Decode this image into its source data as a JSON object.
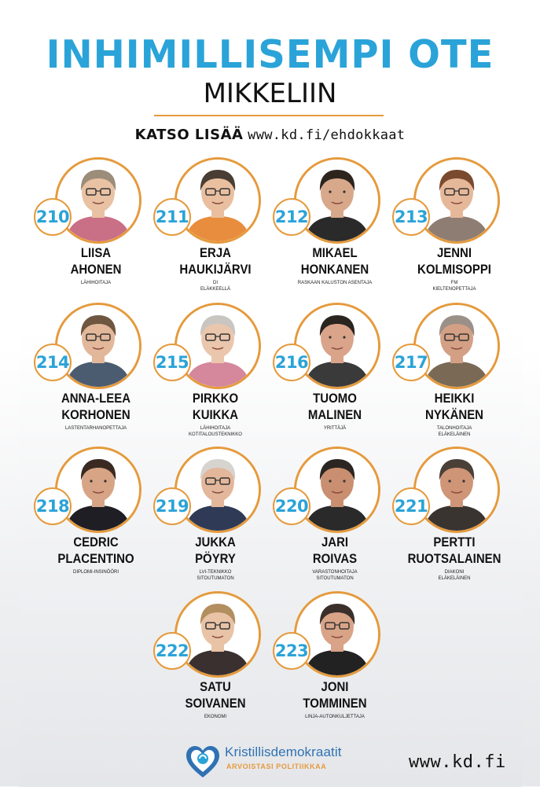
{
  "header": {
    "title": "INHIMILLISEMPI OTE",
    "subtitle": "MIKKELIIN",
    "cta_label": "KATSO LISÄÄ",
    "cta_url": "www.kd.fi/ehdokkaat"
  },
  "candidates": [
    {
      "number": "210",
      "first": "LIISA",
      "last": "AHONEN",
      "role1": "LÄHIHOITAJA",
      "role2": ""
    },
    {
      "number": "211",
      "first": "ERJA",
      "last": "HAUKIJÄRVI",
      "role1": "DI",
      "role2": "ELÄKKEELLÄ"
    },
    {
      "number": "212",
      "first": "MIKAEL",
      "last": "HONKANEN",
      "role1": "RASKAAN KALUSTON ASENTAJA",
      "role2": ""
    },
    {
      "number": "213",
      "first": "JENNI",
      "last": "KOLMISOPPI",
      "role1": "FM",
      "role2": "KIELTENOPETTAJA"
    },
    {
      "number": "214",
      "first": "ANNA-LEEA",
      "last": "KORHONEN",
      "role1": "LASTENTARHANOPETTAJA",
      "role2": ""
    },
    {
      "number": "215",
      "first": "PIRKKO",
      "last": "KUIKKA",
      "role1": "LÄHIHOITAJA",
      "role2": "KOTITALOUSTEKNIKKO"
    },
    {
      "number": "216",
      "first": "TUOMO",
      "last": "MALINEN",
      "role1": "YRITTÄJÄ",
      "role2": ""
    },
    {
      "number": "217",
      "first": "HEIKKI",
      "last": "NYKÄNEN",
      "role1": "TALONHOITAJA",
      "role2": "ELÄKELÄINEN"
    },
    {
      "number": "218",
      "first": "CEDRIC",
      "last": "PLACENTINO",
      "role1": "DIPLOMI-INSINÖÖRI",
      "role2": ""
    },
    {
      "number": "219",
      "first": "JUKKA",
      "last": "PÖYRY",
      "role1": "LVI-TEKNIKKO",
      "role2": "SITOUTUMATON"
    },
    {
      "number": "220",
      "first": "JARI",
      "last": "ROIVAS",
      "role1": "VARASTONHOITAJA",
      "role2": "SITOUTUMATON"
    },
    {
      "number": "221",
      "first": "PERTTI",
      "last": "RUOTSALAINEN",
      "role1": "DIAKONI",
      "role2": "ELÄKELÄINEN"
    },
    {
      "number": "222",
      "first": "SATU",
      "last": "SOIVANEN",
      "role1": "EKONOMI",
      "role2": ""
    },
    {
      "number": "223",
      "first": "JONI",
      "last": "TOMMINEN",
      "role1": "LINJA-AUTONKULJETTAJA",
      "role2": ""
    }
  ],
  "footer": {
    "party_name": "Kristillisdemokraatit",
    "party_slogan": "ARVOISTASI POLITIIKKAA",
    "website": "www.kd.fi"
  },
  "colors": {
    "accent_blue": "#2aa3d8",
    "accent_orange": "#e59a3c",
    "party_blue": "#2f72b3"
  },
  "icons": {
    "party_logo": "heart-logo-icon",
    "portrait": "candidate-portrait"
  }
}
